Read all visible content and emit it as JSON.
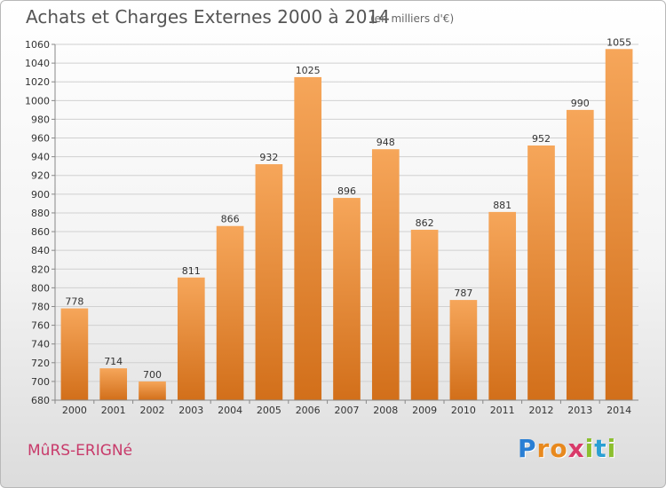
{
  "header": {
    "title": "Achats et Charges Externes 2000 à 2014",
    "subtitle": "(en milliers d'€)"
  },
  "footer": {
    "commune": "MûRS-ERIGNé",
    "logo_letters": [
      {
        "char": "P",
        "color": "#2a7fd4"
      },
      {
        "char": "r",
        "color": "#e8891e"
      },
      {
        "char": "o",
        "color": "#e8891e"
      },
      {
        "char": "x",
        "color": "#d93a6a"
      },
      {
        "char": "i",
        "color": "#8cbf2f"
      },
      {
        "char": "t",
        "color": "#2a9fd4"
      },
      {
        "char": "i",
        "color": "#8cbf2f"
      }
    ]
  },
  "colors": {
    "bar_light": "#f6a65a",
    "bar_dark": "#d26f1a",
    "grid": "#d0d0d0",
    "axis": "#888888"
  },
  "chart_data": {
    "type": "bar",
    "title": "Achats et Charges Externes 2000 à 2014",
    "subtitle": "(en milliers d'€)",
    "xlabel": "",
    "ylabel": "",
    "categories": [
      "2000",
      "2001",
      "2002",
      "2003",
      "2004",
      "2005",
      "2006",
      "2007",
      "2008",
      "2009",
      "2010",
      "2011",
      "2012",
      "2013",
      "2014"
    ],
    "values": [
      778,
      714,
      700,
      811,
      866,
      932,
      1025,
      896,
      948,
      862,
      787,
      881,
      952,
      990,
      1055
    ],
    "ylim": [
      680,
      1060
    ],
    "yticks": [
      680,
      700,
      720,
      740,
      760,
      780,
      800,
      820,
      840,
      860,
      880,
      900,
      920,
      940,
      960,
      980,
      1000,
      1020,
      1040,
      1060
    ],
    "grid": true
  }
}
